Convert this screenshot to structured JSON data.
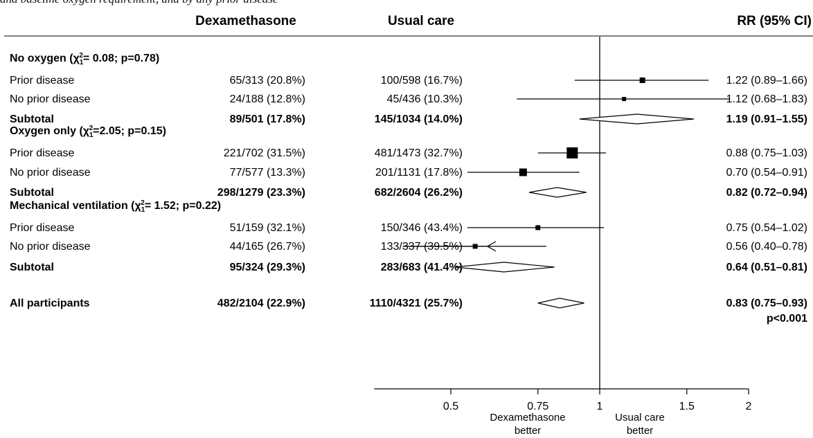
{
  "caption": "and baseline oxygen requirement, and by any prior disease",
  "chart_data": {
    "type": "forest",
    "column_headers": {
      "dex": "Dexamethasone",
      "usual": "Usual care",
      "rr": "RR (95% CI)"
    },
    "x_axis": {
      "scale": "log",
      "ticks": [
        0.5,
        0.75,
        1,
        1.5,
        2
      ],
      "tick_labels": [
        "0.5",
        "0.75",
        "1",
        "1.5",
        "2"
      ],
      "xlim": [
        0.35,
        2.0
      ],
      "reference_line": 1,
      "left_label": [
        "Dexamethasone",
        "better"
      ],
      "right_label": [
        "Usual care",
        "better"
      ]
    },
    "groups": [
      {
        "title_pre": "No oxygen (",
        "chi": "χ",
        "sub": "1",
        "sup": "2",
        "title_post": "= 0.08; p=0.78)",
        "rows": [
          {
            "label": "Prior disease",
            "dex": "65/313 (20.8%)",
            "usual": "100/598 (16.7%)",
            "rr_text": "1.22 (0.89–1.66)",
            "rr": 1.22,
            "lo": 0.89,
            "hi": 1.66,
            "type": "study",
            "size": 8
          },
          {
            "label": "No prior disease",
            "dex": "24/188 (12.8%)",
            "usual": "45/436 (10.3%)",
            "rr_text": "1.12 (0.68–1.83)",
            "rr": 1.12,
            "lo": 0.68,
            "hi": 1.83,
            "type": "study",
            "size": 6
          },
          {
            "label": "Subtotal",
            "dex": "89/501 (17.8%)",
            "usual": "145/1034 (14.0%)",
            "rr_text": "1.19 (0.91–1.55)",
            "rr": 1.19,
            "lo": 0.91,
            "hi": 1.55,
            "type": "subtotal"
          }
        ]
      },
      {
        "title_pre": "Oxygen only (",
        "chi": "χ",
        "sub": "1",
        "sup": "2",
        "title_post": "=2.05; p=0.15)",
        "rows": [
          {
            "label": "Prior disease",
            "dex": "221/702 (31.5%)",
            "usual": "481/1473 (32.7%)",
            "rr_text": "0.88 (0.75–1.03)",
            "rr": 0.88,
            "lo": 0.75,
            "hi": 1.03,
            "type": "study",
            "size": 16
          },
          {
            "label": "No prior disease",
            "dex": "77/577 (13.3%)",
            "usual": "201/1131 (17.8%)",
            "rr_text": "0.70 (0.54–0.91)",
            "rr": 0.7,
            "lo": 0.54,
            "hi": 0.91,
            "type": "study",
            "size": 11
          },
          {
            "label": "Subtotal",
            "dex": "298/1279 (23.3%)",
            "usual": "682/2604 (26.2%)",
            "rr_text": "0.82 (0.72–0.94)",
            "rr": 0.82,
            "lo": 0.72,
            "hi": 0.94,
            "type": "subtotal"
          }
        ]
      },
      {
        "title_pre": "Mechanical ventilation (",
        "chi": "χ",
        "sub": "1",
        "sup": "2",
        "title_post": "= 1.52; p=0.22)",
        "rows": [
          {
            "label": "Prior disease",
            "dex": "51/159 (32.1%)",
            "usual": "150/346 (43.4%)",
            "rr_text": "0.75 (0.54–1.02)",
            "rr": 0.75,
            "lo": 0.54,
            "hi": 1.02,
            "type": "study",
            "size": 7
          },
          {
            "label": "No prior disease",
            "dex": "44/165 (26.7%)",
            "usual": "133/337 (39.5%)",
            "rr_text": "0.56 (0.40–0.78)",
            "rr": 0.56,
            "lo": 0.4,
            "hi": 0.78,
            "type": "study",
            "size": 7,
            "arrow_left": true
          },
          {
            "label": "Subtotal",
            "dex": "95/324 (29.3%)",
            "usual": "283/683 (41.4%)",
            "rr_text": "0.64 (0.51–0.81)",
            "rr": 0.64,
            "lo": 0.51,
            "hi": 0.81,
            "type": "subtotal"
          }
        ]
      }
    ],
    "overall": {
      "label": "All participants",
      "dex": "482/2104 (22.9%)",
      "usual": "1110/4321 (25.7%)",
      "rr_text": "0.83 (0.75–0.93)",
      "p_text": "p<0.001",
      "rr": 0.83,
      "lo": 0.75,
      "hi": 0.93,
      "type": "overall"
    }
  }
}
